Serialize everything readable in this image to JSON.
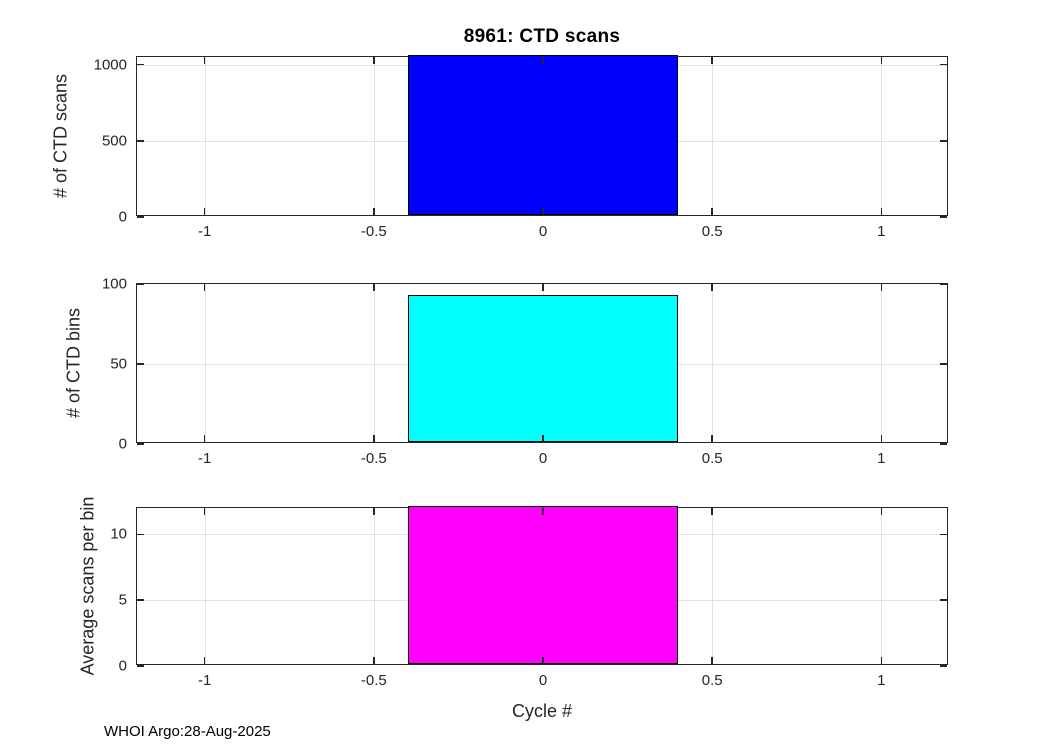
{
  "figure": {
    "title": "8961: CTD scans",
    "xlabel": "Cycle #",
    "footer": "WHOI Argo:28-Aug-2025"
  },
  "style": {
    "background": "#ffffff",
    "axis_color": "#262626",
    "grid_color": "#e0e0e0",
    "title_color": "#000000",
    "bar_edge_color": "#000000"
  },
  "chart_data": [
    {
      "type": "bar",
      "subplot": "top",
      "ylabel": "# of CTD scans",
      "x": [
        0
      ],
      "values": [
        1050
      ],
      "note": "bar is clipped at the top of the y-axis (value >= axis max)",
      "bar_width": 0.8,
      "bar_color": "#0000ff",
      "xlim": [
        -1.2,
        1.2
      ],
      "ylim": [
        0,
        1050
      ],
      "xticks": [
        -1,
        -0.5,
        0,
        0.5,
        1
      ],
      "xtick_labels": [
        "-1",
        "-0.5",
        "0",
        "0.5",
        "1"
      ],
      "yticks": [
        0,
        500,
        1000
      ],
      "ytick_labels": [
        "0",
        "500",
        "1000"
      ],
      "grid": true,
      "legend": "none"
    },
    {
      "type": "bar",
      "subplot": "middle",
      "ylabel": "# of CTD bins",
      "x": [
        0
      ],
      "values": [
        92
      ],
      "bar_width": 0.8,
      "bar_color": "#00ffff",
      "xlim": [
        -1.2,
        1.2
      ],
      "ylim": [
        0,
        100
      ],
      "xticks": [
        -1,
        -0.5,
        0,
        0.5,
        1
      ],
      "xtick_labels": [
        "-1",
        "-0.5",
        "0",
        "0.5",
        "1"
      ],
      "yticks": [
        0,
        50,
        100
      ],
      "ytick_labels": [
        "0",
        "50",
        "100"
      ],
      "grid": true,
      "legend": "none"
    },
    {
      "type": "bar",
      "subplot": "bottom",
      "ylabel": "Average scans per bin",
      "x": [
        0
      ],
      "values": [
        12
      ],
      "bar_width": 0.8,
      "bar_color": "#ff00ff",
      "xlim": [
        -1.2,
        1.2
      ],
      "ylim": [
        0,
        12
      ],
      "xticks": [
        -1,
        -0.5,
        0,
        0.5,
        1
      ],
      "xtick_labels": [
        "-1",
        "-0.5",
        "0",
        "0.5",
        "1"
      ],
      "yticks": [
        0,
        5,
        10
      ],
      "ytick_labels": [
        "0",
        "5",
        "10"
      ],
      "grid": true,
      "legend": "none"
    }
  ]
}
